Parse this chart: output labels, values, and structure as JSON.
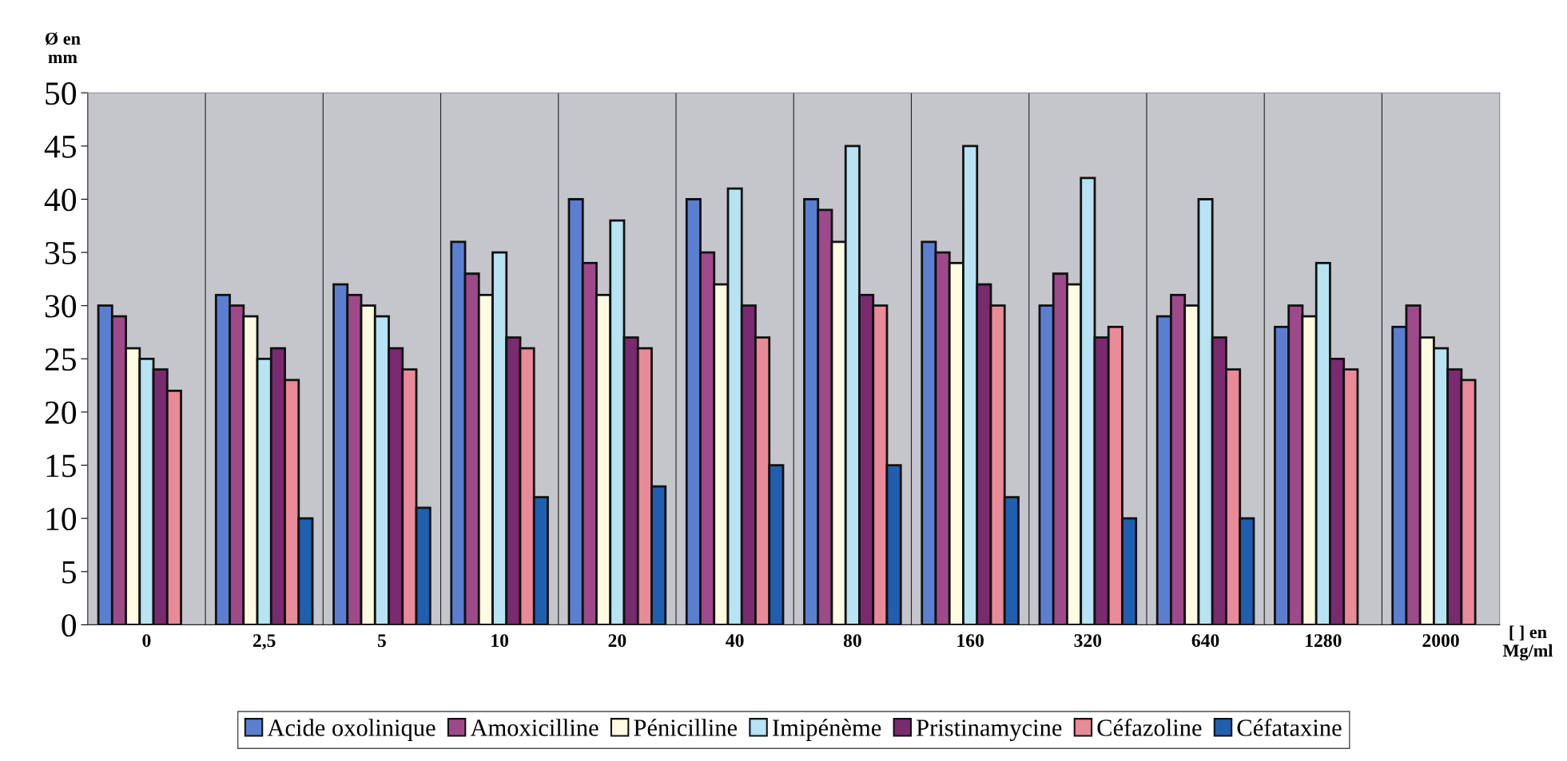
{
  "chart_data": {
    "type": "bar",
    "ylabel": "Ø en\nmm",
    "xlabel": "[ ] en\nMg/ml",
    "categories": [
      "0",
      "2,5",
      "5",
      "10",
      "20",
      "40",
      "80",
      "160",
      "320",
      "640",
      "1280",
      "2000"
    ],
    "series": [
      {
        "name": "Acide oxolinique",
        "color": "#5b7fd0",
        "values": [
          30,
          31,
          32,
          36,
          40,
          40,
          40,
          36,
          30,
          29,
          28,
          28
        ]
      },
      {
        "name": "Amoxicilline",
        "color": "#9e4a8a",
        "values": [
          29,
          30,
          31,
          33,
          34,
          35,
          39,
          35,
          33,
          31,
          30,
          30
        ]
      },
      {
        "name": "Pénicilline",
        "color": "#fffbe0",
        "values": [
          26,
          29,
          30,
          31,
          31,
          32,
          36,
          34,
          32,
          30,
          29,
          27
        ]
      },
      {
        "name": "Imipénème",
        "color": "#b7e3f3",
        "values": [
          25,
          25,
          29,
          35,
          38,
          41,
          45,
          45,
          42,
          40,
          34,
          26
        ]
      },
      {
        "name": "Pristinamycine",
        "color": "#7a2a6e",
        "values": [
          24,
          26,
          26,
          27,
          27,
          30,
          31,
          32,
          27,
          27,
          25,
          24
        ]
      },
      {
        "name": "Céfazoline",
        "color": "#e88a97",
        "values": [
          22,
          23,
          24,
          26,
          26,
          27,
          30,
          30,
          28,
          24,
          24,
          23
        ]
      },
      {
        "name": "Céfataxine",
        "color": "#1f5fb0",
        "values": [
          null,
          10,
          11,
          12,
          13,
          15,
          15,
          12,
          10,
          10,
          null,
          null
        ]
      }
    ],
    "ylim": [
      0,
      50
    ],
    "yticks": [
      0,
      5,
      10,
      15,
      20,
      25,
      30,
      35,
      40,
      45,
      50
    ],
    "grid": "x",
    "legend": "bottom"
  }
}
